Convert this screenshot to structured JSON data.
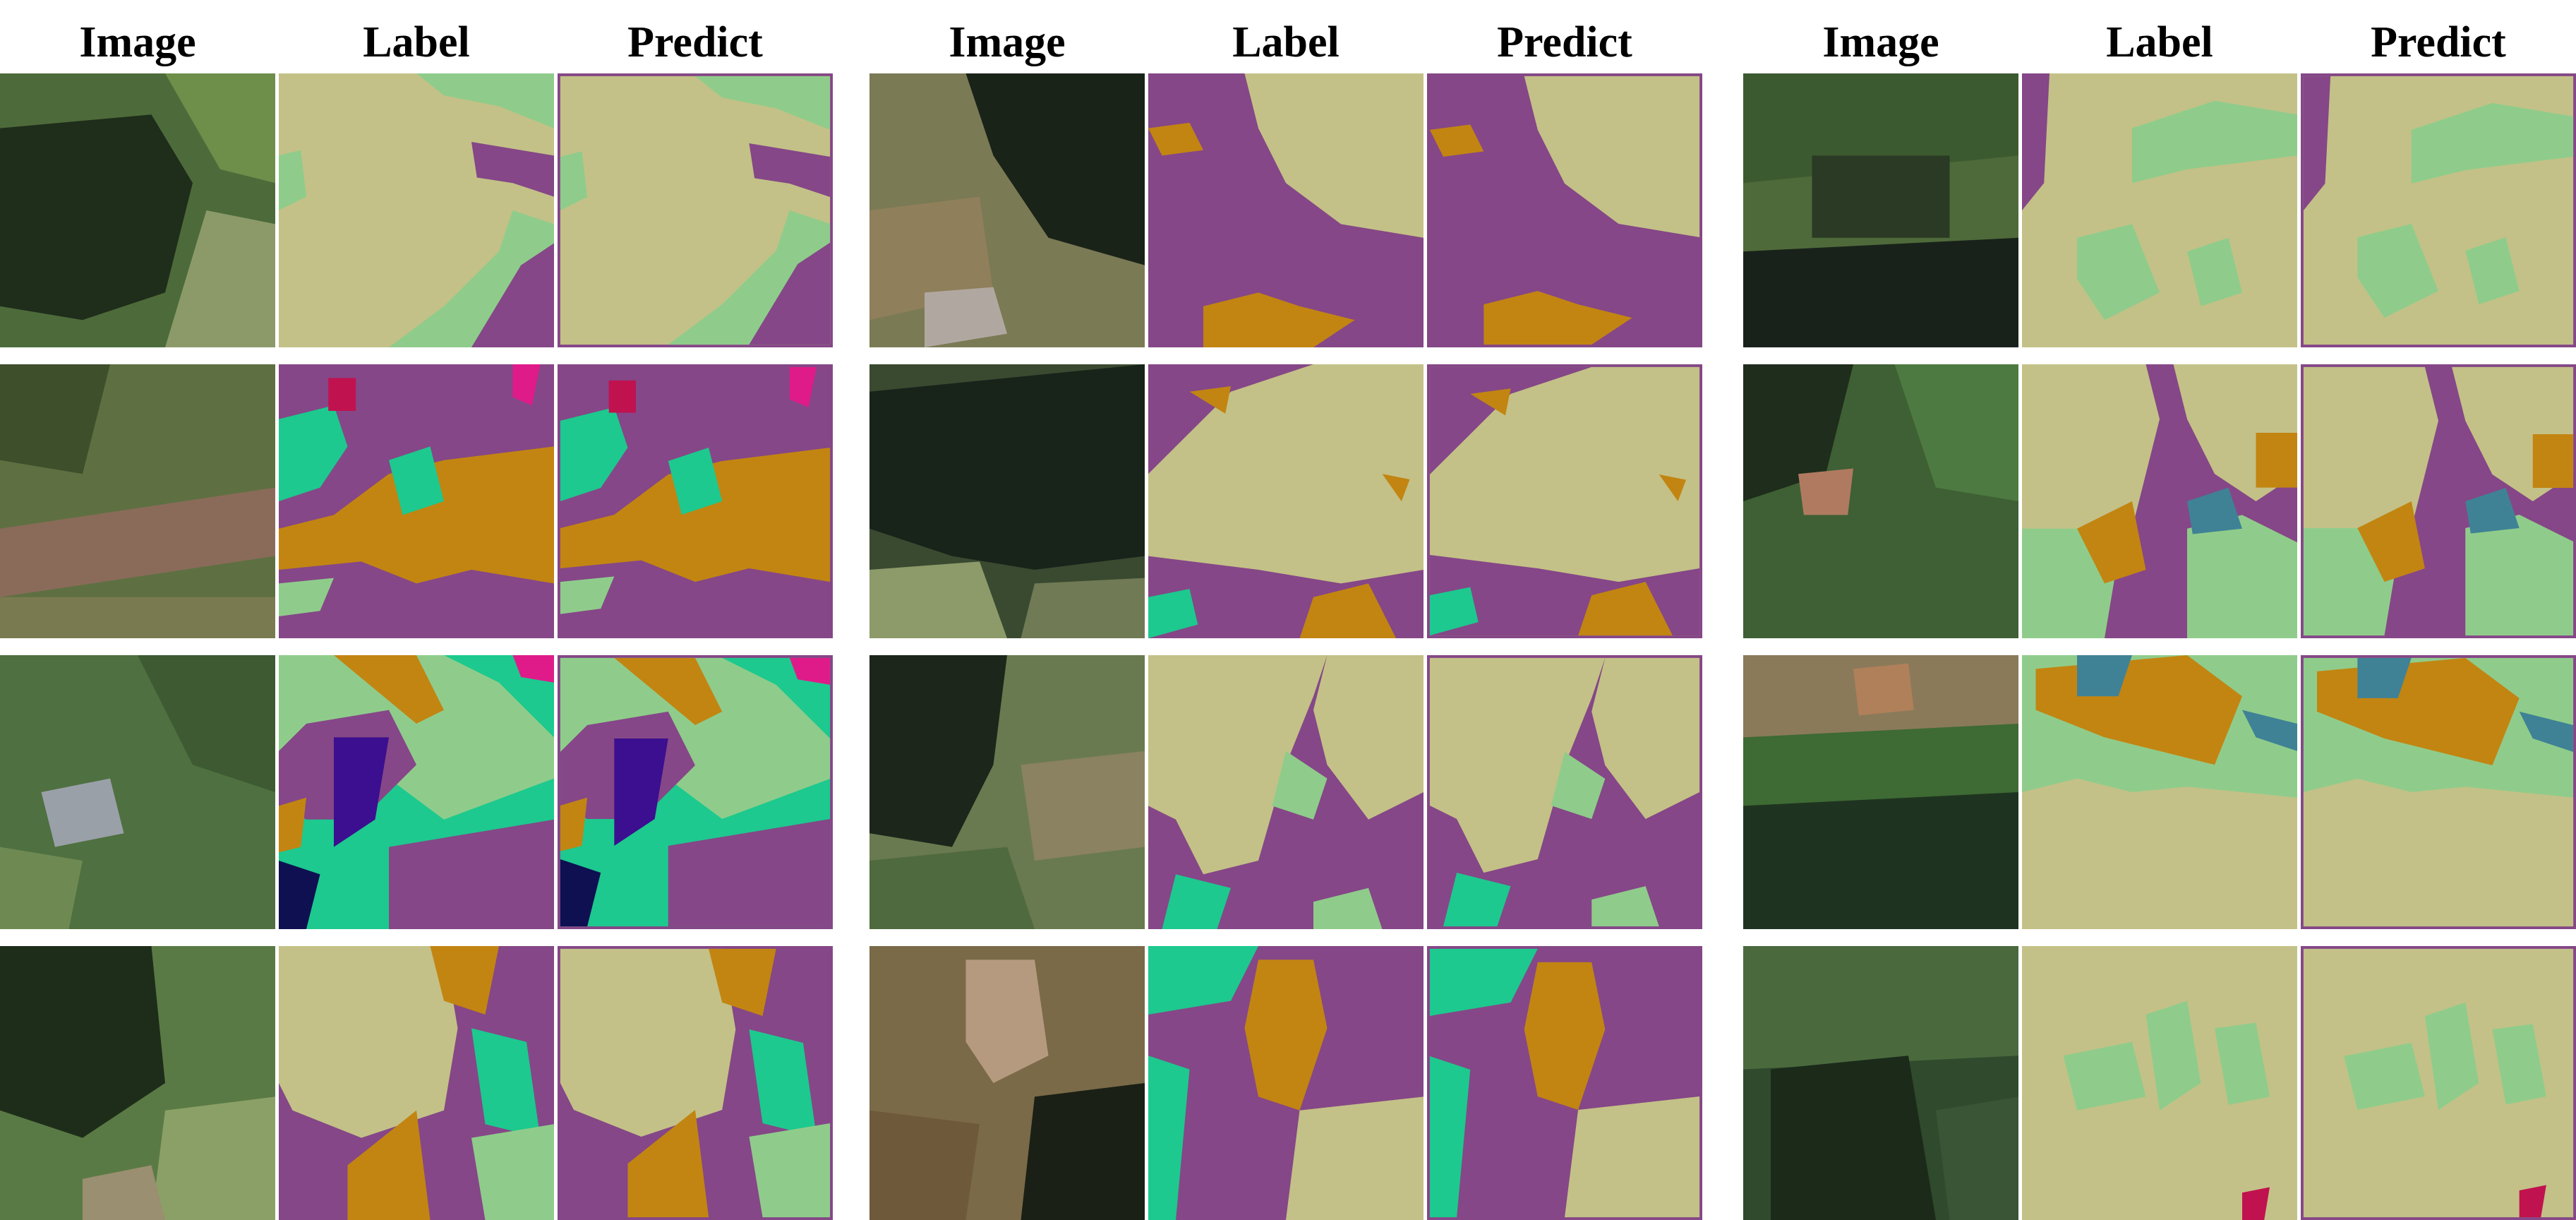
{
  "column_headers": [
    "Image",
    "Label",
    "Predict",
    "Image",
    "Label",
    "Predict",
    "Image",
    "Label",
    "Predict"
  ],
  "palette": {
    "forest_khaki": "#c3c187",
    "meadow_green": "#8fcc8b",
    "cropland_purple": "#854787",
    "urban_orange": "#c28512",
    "teal_green": "#1dc98e",
    "navy": "#0e1052",
    "indigo": "#3b0f8f",
    "magenta": "#df1b8a",
    "crimson": "#c0124f",
    "steel_teal": "#3f8296"
  },
  "tiles": [
    {
      "group": 0,
      "row": 0,
      "kind": "image"
    },
    {
      "group": 0,
      "row": 0,
      "kind": "label"
    },
    {
      "group": 0,
      "row": 0,
      "kind": "predict"
    },
    {
      "group": 0,
      "row": 1,
      "kind": "image"
    },
    {
      "group": 0,
      "row": 1,
      "kind": "label"
    },
    {
      "group": 0,
      "row": 1,
      "kind": "predict"
    },
    {
      "group": 0,
      "row": 2,
      "kind": "image"
    },
    {
      "group": 0,
      "row": 2,
      "kind": "label"
    },
    {
      "group": 0,
      "row": 2,
      "kind": "predict"
    },
    {
      "group": 0,
      "row": 3,
      "kind": "image"
    },
    {
      "group": 0,
      "row": 3,
      "kind": "label"
    },
    {
      "group": 0,
      "row": 3,
      "kind": "predict"
    },
    {
      "group": 1,
      "row": 0,
      "kind": "image"
    },
    {
      "group": 1,
      "row": 0,
      "kind": "label"
    },
    {
      "group": 1,
      "row": 0,
      "kind": "predict"
    },
    {
      "group": 1,
      "row": 1,
      "kind": "image"
    },
    {
      "group": 1,
      "row": 1,
      "kind": "label"
    },
    {
      "group": 1,
      "row": 1,
      "kind": "predict"
    },
    {
      "group": 1,
      "row": 2,
      "kind": "image"
    },
    {
      "group": 1,
      "row": 2,
      "kind": "label"
    },
    {
      "group": 1,
      "row": 2,
      "kind": "predict"
    },
    {
      "group": 1,
      "row": 3,
      "kind": "image"
    },
    {
      "group": 1,
      "row": 3,
      "kind": "label"
    },
    {
      "group": 1,
      "row": 3,
      "kind": "predict"
    },
    {
      "group": 2,
      "row": 0,
      "kind": "image"
    },
    {
      "group": 2,
      "row": 0,
      "kind": "label"
    },
    {
      "group": 2,
      "row": 0,
      "kind": "predict"
    },
    {
      "group": 2,
      "row": 1,
      "kind": "image"
    },
    {
      "group": 2,
      "row": 1,
      "kind": "label"
    },
    {
      "group": 2,
      "row": 1,
      "kind": "predict"
    },
    {
      "group": 2,
      "row": 2,
      "kind": "image"
    },
    {
      "group": 2,
      "row": 2,
      "kind": "label"
    },
    {
      "group": 2,
      "row": 2,
      "kind": "predict"
    },
    {
      "group": 2,
      "row": 3,
      "kind": "image"
    },
    {
      "group": 2,
      "row": 3,
      "kind": "label"
    },
    {
      "group": 2,
      "row": 3,
      "kind": "predict"
    }
  ]
}
